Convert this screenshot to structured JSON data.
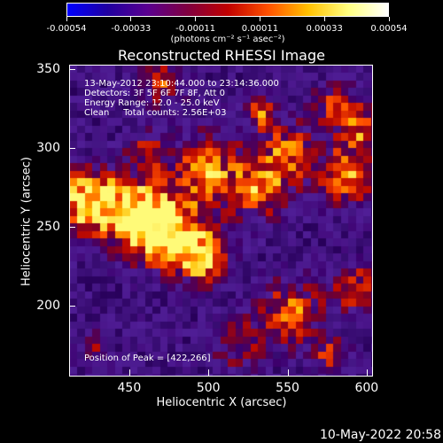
{
  "colorbar": {
    "ticks": [
      "-0.00054",
      "-0.00033",
      "-0.00011",
      "0.00011",
      "0.00033",
      "0.00054"
    ],
    "units": "(photons cm⁻² s⁻¹ asec⁻²)",
    "colormap": [
      "#0000ff",
      "#2000a0",
      "#5a0090",
      "#800040",
      "#c00000",
      "#ff5000",
      "#ffc000",
      "#ffff80",
      "#ffffff"
    ]
  },
  "title": "Reconstructed RHESSI Image",
  "info": {
    "time": "13-May-2012 23:10:44.000 to 23:14:36.000",
    "detectors": "Detectors: 3F 5F 6F 7F 8F, Att 0",
    "energy": "Energy Range: 12.0 - 25.0 keV",
    "clean": "Clean     Total counts: 2.56E+03",
    "peak": "Position of Peak = [422,266]"
  },
  "axes": {
    "xlabel": "Heliocentric X (arcsec)",
    "ylabel": "Heliocentric Y (arcsec)",
    "xticks": [
      "450",
      "500",
      "550",
      "600"
    ],
    "yticks": [
      "350",
      "300",
      "250",
      "200"
    ],
    "xrange": [
      412,
      604
    ],
    "yrange": [
      155,
      353
    ]
  },
  "footer": {
    "date": "10-May-2022 20:58"
  }
}
